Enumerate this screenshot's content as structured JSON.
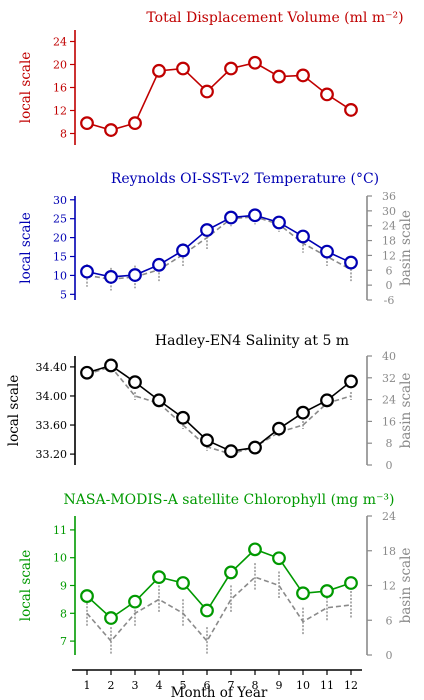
{
  "chart_data": [
    {
      "type": "line",
      "title": "Total Displacement Volume (ml m⁻²)",
      "ylabel_left": "local scale",
      "color": "#c00000",
      "x": [
        1,
        2,
        3,
        4,
        5,
        6,
        7,
        8,
        9,
        10,
        11,
        12
      ],
      "left_ylim": [
        6,
        26
      ],
      "left_ticks": [
        8,
        12,
        16,
        20,
        24
      ],
      "series": [
        {
          "axis": "left",
          "style": "solid-markers",
          "values": [
            9.8,
            8.6,
            9.8,
            18.9,
            19.3,
            15.3,
            19.3,
            20.3,
            17.9,
            18.1,
            14.8,
            12.1
          ]
        }
      ]
    },
    {
      "type": "line",
      "title": "Reynolds OI-SST-v2 Temperature (°C)",
      "ylabel_left": "local scale",
      "ylabel_right": "basin scale",
      "color": "#0000b3",
      "x": [
        1,
        2,
        3,
        4,
        5,
        6,
        7,
        8,
        9,
        10,
        11,
        12
      ],
      "left_ylim": [
        3.5,
        31
      ],
      "left_ticks": [
        5,
        10,
        15,
        20,
        25,
        30
      ],
      "right_ylim": [
        -6,
        36
      ],
      "right_ticks": [
        -6,
        0,
        6,
        12,
        18,
        24,
        30,
        36
      ],
      "series": [
        {
          "axis": "left",
          "style": "solid-markers",
          "values": [
            11.0,
            9.6,
            10.1,
            12.8,
            16.6,
            22.0,
            25.3,
            25.9,
            24.0,
            20.3,
            16.3,
            13.4
          ]
        },
        {
          "axis": "right",
          "style": "dashed-errorbars",
          "values": [
            10.0,
            9.0,
            9.6,
            11.5,
            15.5,
            20.0,
            25.0,
            25.5,
            23.5,
            18.5,
            15.0,
            11.5
          ],
          "error": [
            3,
            3,
            3,
            3,
            3,
            3,
            2,
            2,
            2,
            2.5,
            2.5,
            3
          ]
        }
      ]
    },
    {
      "type": "line",
      "title": "Hadley-EN4 Salinity at 5 m",
      "ylabel_left": "local scale",
      "ylabel_right": "basin scale",
      "color": "#000000",
      "x": [
        1,
        2,
        3,
        4,
        5,
        6,
        7,
        8,
        9,
        10,
        11,
        12
      ],
      "left_ylim": [
        33.05,
        34.55
      ],
      "left_ticks": [
        "33.20",
        "33.60",
        "34.00",
        "34.40"
      ],
      "right_ylim": [
        0,
        40
      ],
      "right_ticks": [
        0,
        8,
        16,
        24,
        32,
        40
      ],
      "series": [
        {
          "axis": "left",
          "style": "solid-markers",
          "values": [
            34.32,
            34.42,
            34.19,
            33.94,
            33.7,
            33.39,
            33.24,
            33.29,
            33.55,
            33.77,
            33.94,
            34.2
          ]
        },
        {
          "axis": "right",
          "style": "dashed-errorbars",
          "values": [
            34.3,
            34.4,
            34.0,
            33.9,
            33.6,
            33.3,
            33.2,
            33.3,
            33.5,
            33.6,
            33.9,
            34.0
          ],
          "error": [
            1.5,
            1.5,
            1.5,
            1.5,
            1.5,
            1.5,
            1.5,
            1.5,
            1.5,
            1.5,
            1.5,
            1.5
          ]
        }
      ]
    },
    {
      "type": "line",
      "title": "NASA-MODIS-A satellite Chlorophyll (mg m⁻³)",
      "ylabel_left": "local scale",
      "ylabel_right": "basin scale",
      "xlabel": "Month of Year",
      "xtick_labels": [
        "1",
        "2",
        "3",
        "4",
        "5",
        "6",
        "7",
        "8",
        "9",
        "10",
        "11",
        "12"
      ],
      "color": "#009900",
      "x": [
        1,
        2,
        3,
        4,
        5,
        6,
        7,
        8,
        9,
        10,
        11,
        12
      ],
      "left_ylim": [
        6.5,
        11.5
      ],
      "left_ticks": [
        7,
        8,
        9,
        10,
        11
      ],
      "right_ylim": [
        0,
        24
      ],
      "right_ticks": [
        0,
        6,
        12,
        18,
        24
      ],
      "series": [
        {
          "axis": "left",
          "style": "solid-markers",
          "values": [
            8.62,
            7.83,
            8.42,
            9.3,
            9.09,
            8.1,
            9.47,
            10.3,
            9.98,
            8.72,
            8.8,
            9.09
          ]
        },
        {
          "axis": "right",
          "style": "dashed-errorbars",
          "values": [
            8.0,
            7.0,
            8.0,
            8.5,
            8.0,
            7.0,
            8.5,
            9.3,
            9.0,
            7.7,
            8.2,
            8.3
          ],
          "error": [
            1.2,
            1.2,
            1.5,
            1.5,
            1.5,
            2.5,
            1.8,
            1.5,
            1.5,
            1.2,
            1.2,
            1.2
          ]
        }
      ]
    }
  ]
}
